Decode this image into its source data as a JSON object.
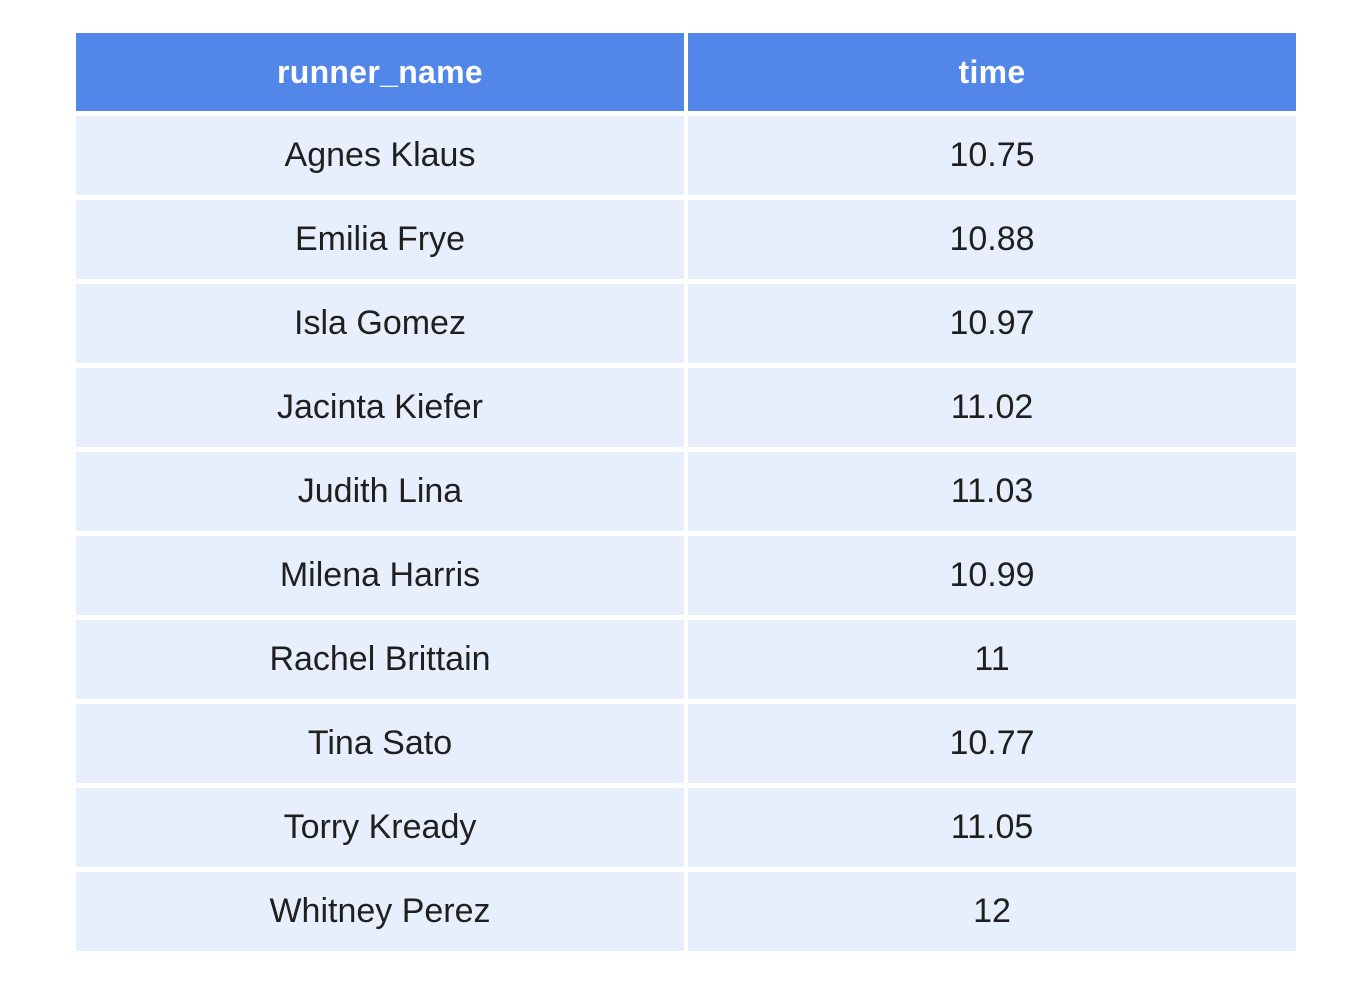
{
  "table": {
    "headers": [
      "runner_name",
      "time"
    ],
    "rows": [
      [
        "Agnes Klaus",
        "10.75"
      ],
      [
        "Emilia Frye",
        "10.88"
      ],
      [
        "Isla Gomez",
        "10.97"
      ],
      [
        "Jacinta Kiefer",
        "11.02"
      ],
      [
        "Judith Lina",
        "11.03"
      ],
      [
        "Milena Harris",
        "10.99"
      ],
      [
        "Rachel Brittain",
        "11"
      ],
      [
        "Tina Sato",
        "10.77"
      ],
      [
        "Torry Kready",
        "11.05"
      ],
      [
        "Whitney Perez",
        "12"
      ]
    ]
  },
  "colors": {
    "header_bg": "#5286e9",
    "header_text": "#ffffff",
    "row_bg": "#e8effc",
    "row_text": "#1f1f1f"
  }
}
